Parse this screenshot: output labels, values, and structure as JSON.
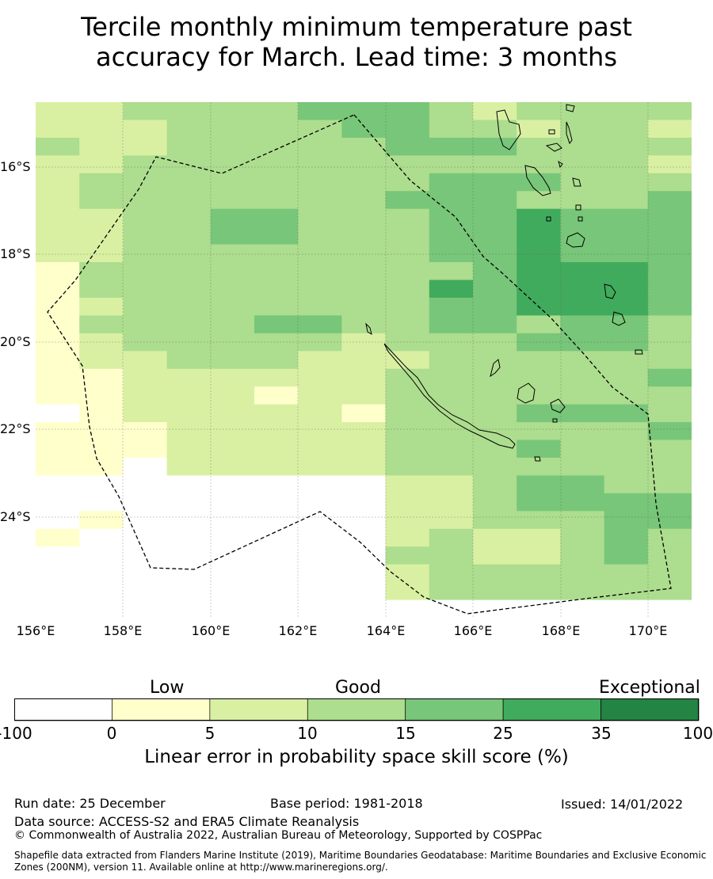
{
  "title": {
    "line1": "Tercile monthly minimum temperature past",
    "line2": "accuracy for March. Lead time: 3 months"
  },
  "axes": {
    "lat_labels": [
      "16°S",
      "18°S",
      "20°S",
      "22°S",
      "24°S"
    ],
    "lon_labels": [
      "156°E",
      "158°E",
      "160°E",
      "162°E",
      "164°E",
      "166°E",
      "168°E",
      "170°E"
    ]
  },
  "colorbar": {
    "categories": [
      "Low",
      "Good",
      "Exceptional"
    ],
    "ticks": [
      "-100",
      "0",
      "5",
      "10",
      "15",
      "25",
      "35",
      "100"
    ],
    "colors": [
      "#ffffff",
      "#ffffcc",
      "#d9f0a3",
      "#addd8e",
      "#78c679",
      "#41ab5d",
      "#238443"
    ],
    "label": "Linear error in probability space skill score (%)"
  },
  "footer": {
    "run_date": "Run date: 25 December",
    "base_period": "Base period: 1981-2018",
    "issued": "Issued: 14/01/2022",
    "data_source": "Data source: ACCESS-S2 and ERA5 Climate Reanalysis",
    "copyright": "© Commonwealth of Australia 2022, Australian Bureau of Meteorology, Supported by COSPPac",
    "shapefile_line1": "Shapefile data extracted from Flanders Marine Institute (2019), Maritime Boundaries Geodatabase: Maritime Boundaries and Exclusive Economic",
    "shapefile_line2": "Zones (200NM), version 11. Available online at http://www.marineregions.org/."
  },
  "grid_rows": [
    "223333444323333",
    "222333344332332",
    "322333334443333",
    "223333333333332",
    "233333333444333",
    "233333334443334",
    "223344333445444",
    "223344333445444",
    "223333333445444",
    "133333333345554",
    "133333333545554",
    "123333333445554",
    "133334433443443",
    "123333323334443",
    "122333222333333",
    "112222223333334",
    "112221223333333",
    "012222213334443",
    "111222223333334",
    "111222223334333",
    "110222223333333",
    "000000002234433",
    "000000002234444",
    "010000002233344",
    "100000002322343",
    "000000003322343",
    "000000002333333",
    "000000002333333",
    "000000000000000"
  ]
}
